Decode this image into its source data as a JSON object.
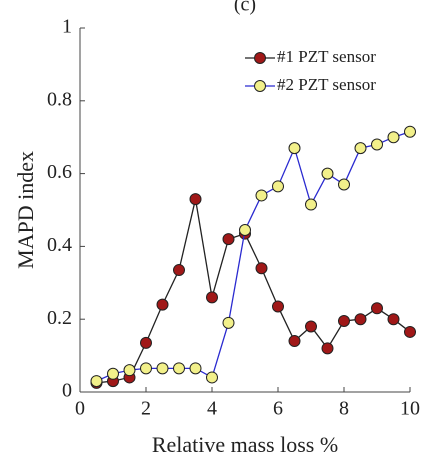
{
  "chart_data": {
    "type": "line",
    "title": "(c)",
    "x_label": "Relative mass loss %",
    "y_label": "MAPD index",
    "x": [
      0.5,
      1,
      1.5,
      2,
      2.5,
      3,
      3.5,
      4,
      4.5,
      5,
      5.5,
      6,
      6.5,
      7,
      7.5,
      8,
      8.5,
      9,
      9.5,
      10
    ],
    "series": [
      {
        "name": "#1 PZT sensor",
        "color": "#222222",
        "marker_color": "#a01818",
        "values": [
          0.025,
          0.03,
          0.04,
          0.135,
          0.24,
          0.335,
          0.53,
          0.26,
          0.42,
          0.435,
          0.34,
          0.235,
          0.14,
          0.18,
          0.12,
          0.195,
          0.2,
          0.23,
          0.2,
          0.165
        ]
      },
      {
        "name": "#2 PZT sensor",
        "color": "#2a2ad0",
        "marker_color": "#f2f08a",
        "values": [
          0.03,
          0.05,
          0.06,
          0.065,
          0.065,
          0.065,
          0.065,
          0.04,
          0.19,
          0.445,
          0.54,
          0.565,
          0.67,
          0.515,
          0.6,
          0.57,
          0.67,
          0.68,
          0.7,
          0.715
        ]
      }
    ],
    "xlim": [
      0,
      10
    ],
    "xticks": [
      0,
      2,
      4,
      6,
      8,
      10
    ],
    "ylim": [
      0,
      1
    ],
    "yticks": [
      0,
      0.2,
      0.4,
      0.6,
      0.8,
      1
    ],
    "legend": "upper right"
  }
}
